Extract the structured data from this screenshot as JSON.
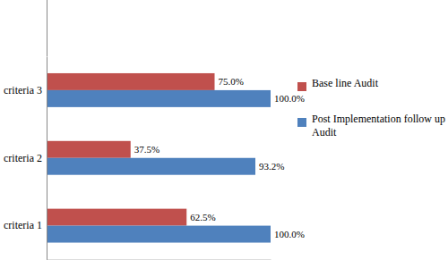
{
  "chart_data": {
    "type": "bar",
    "orientation": "horizontal",
    "categories": [
      "criteria 1",
      "criteria 2",
      "criteria 3"
    ],
    "series": [
      {
        "name": "Base line Audit",
        "color": "#c0504d",
        "values": [
          62.5,
          37.5,
          75.0
        ],
        "value_labels": [
          "62.5%",
          "37.5%",
          "75.0%"
        ]
      },
      {
        "name": "Post Implementation follow up Audit",
        "color": "#4f81bd",
        "values": [
          100,
          93.2,
          100
        ],
        "value_labels": [
          "100.0%",
          "93.2%",
          "100.0%"
        ]
      }
    ],
    "xlim": [
      0,
      100
    ],
    "data_labels": true,
    "legend": "right",
    "tick_labels": "y"
  }
}
